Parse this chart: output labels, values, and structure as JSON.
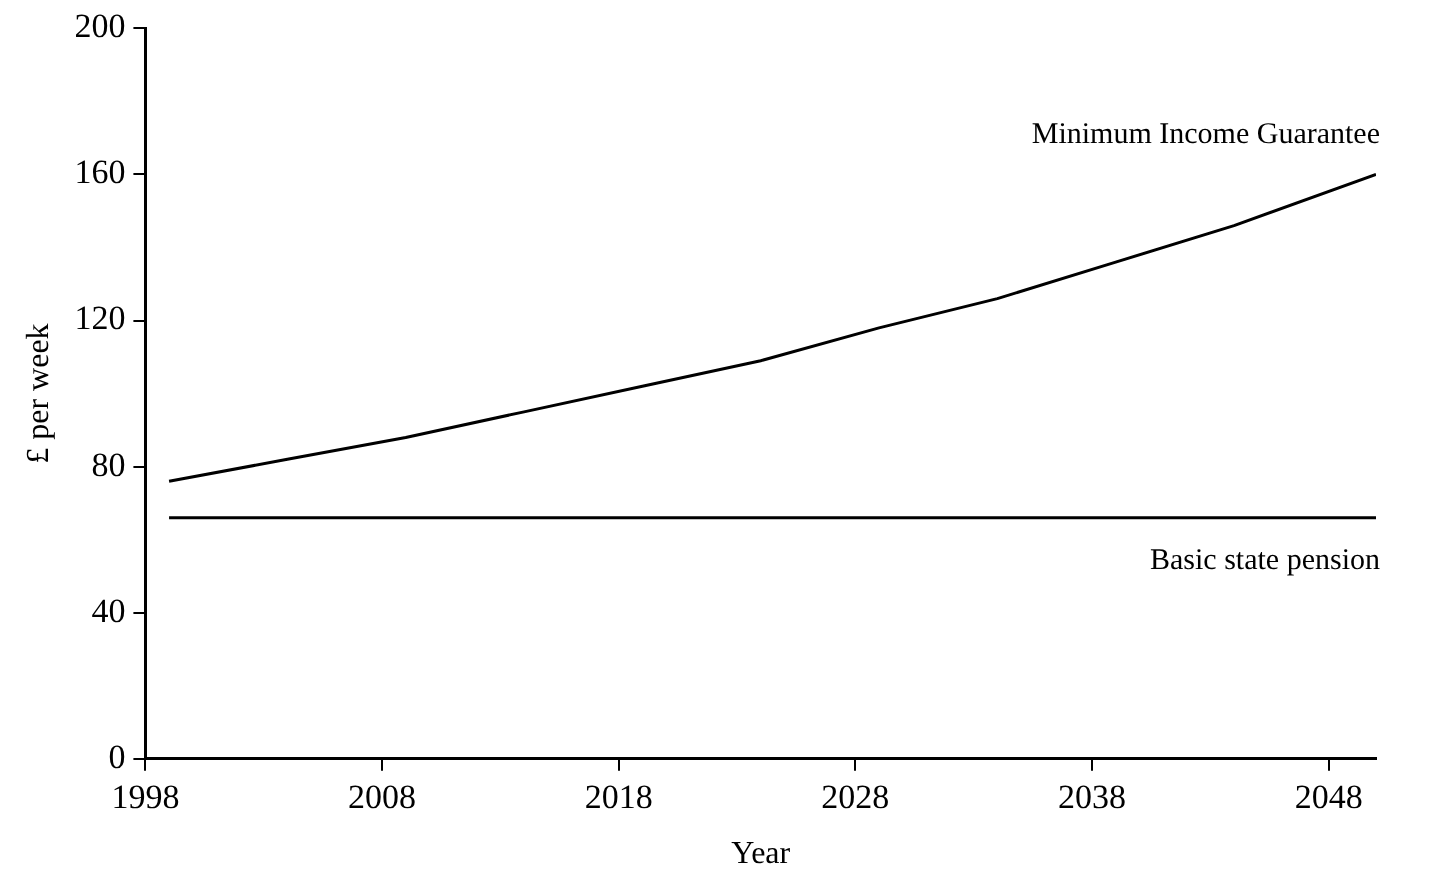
{
  "chart_data": {
    "type": "line",
    "xlabel": "Year",
    "ylabel": "£ per week",
    "xlim": [
      1998,
      2050
    ],
    "xticks": [
      1998,
      2008,
      2018,
      2028,
      2038,
      2048
    ],
    "ylim": [
      0,
      200
    ],
    "yticks": [
      0,
      40,
      80,
      120,
      160,
      200
    ],
    "grid": false,
    "legend": false,
    "marker": "none",
    "line_style": "solid",
    "series": [
      {
        "name": "Minimum Income Guarantee",
        "color": "#000000",
        "x": [
          1999,
          2004,
          2009,
          2014,
          2019,
          2024,
          2029,
          2034,
          2039,
          2044,
          2050
        ],
        "values": [
          76,
          82,
          88,
          95,
          102,
          109,
          118,
          126,
          136,
          146,
          160
        ]
      },
      {
        "name": "Basic state pension",
        "color": "#000000",
        "x": [
          1999,
          2050
        ],
        "values": [
          66,
          66
        ]
      }
    ]
  }
}
